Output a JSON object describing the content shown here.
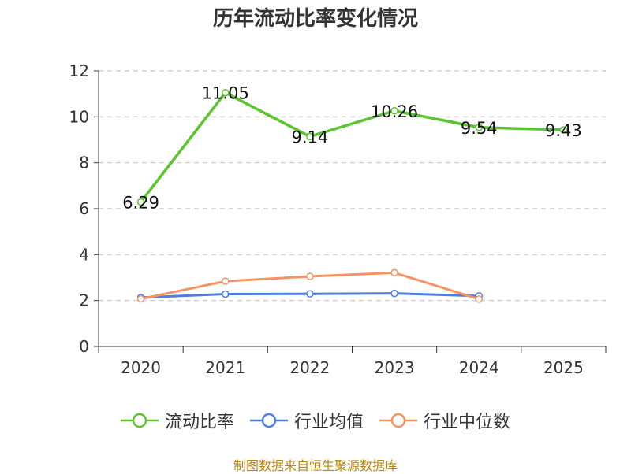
{
  "chart_data": {
    "type": "line",
    "title": "历年流动比率变化情况",
    "categories": [
      "2020",
      "2021",
      "2022",
      "2023",
      "2024",
      "2025"
    ],
    "ylim": [
      0,
      12
    ],
    "yticks": [
      0,
      2,
      4,
      6,
      8,
      10,
      12
    ],
    "grid": true,
    "legend_position": "bottom",
    "series": [
      {
        "name": "流动比率",
        "color": "#5cc42f",
        "values": [
          6.29,
          11.05,
          9.14,
          10.26,
          9.54,
          9.43
        ],
        "labels": [
          "6.29",
          "11.05",
          "9.14",
          "10.26",
          "9.54",
          "9.43"
        ]
      },
      {
        "name": "行业均值",
        "color": "#4e7fde",
        "values": [
          2.13,
          2.28,
          2.29,
          2.31,
          2.2,
          null
        ]
      },
      {
        "name": "行业中位数",
        "color": "#f59462",
        "values": [
          2.07,
          2.84,
          3.05,
          3.21,
          2.06,
          null
        ]
      }
    ]
  },
  "source": "制图数据来自恒生聚源数据库"
}
